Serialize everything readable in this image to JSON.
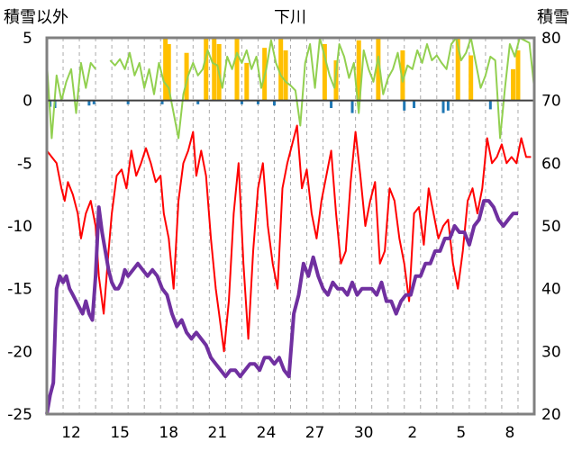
{
  "chart_data": {
    "type": "line",
    "title": "下川",
    "y_left_label": "積雪以外",
    "y_right_label": "積雪",
    "y_left_range": [
      -25,
      5
    ],
    "y_left_ticks": [
      "5",
      "0",
      "-5",
      "-10",
      "-15",
      "-20",
      "-25"
    ],
    "y_right_range": [
      20,
      80
    ],
    "y_right_ticks": [
      "80",
      "70",
      "60",
      "50",
      "40",
      "30",
      "20"
    ],
    "x_range": [
      0,
      30
    ],
    "x_ticks": [
      {
        "x": 1.5,
        "label": "12"
      },
      {
        "x": 4.5,
        "label": "15"
      },
      {
        "x": 7.5,
        "label": "18"
      },
      {
        "x": 10.5,
        "label": "21"
      },
      {
        "x": 13.5,
        "label": "24"
      },
      {
        "x": 16.5,
        "label": "27"
      },
      {
        "x": 19.5,
        "label": "30"
      },
      {
        "x": 22.5,
        "label": "2"
      },
      {
        "x": 25.5,
        "label": "5"
      },
      {
        "x": 28.5,
        "label": "8"
      }
    ],
    "grid": "vertical dashed every day",
    "colors": {
      "temperature": "#ff0000",
      "snow_depth": "#7030a0",
      "sunshine": "#92d050",
      "precipitation": "#ffc000",
      "small_bars": "#1f77b4"
    },
    "series": [
      {
        "key": "temperature",
        "axis": "left",
        "x": [
          0,
          0.3,
          0.6,
          0.9,
          1.1,
          1.3,
          1.6,
          1.9,
          2.1,
          2.4,
          2.7,
          3.0,
          3.2,
          3.5,
          3.8,
          4.0,
          4.3,
          4.6,
          4.9,
          5.2,
          5.5,
          5.8,
          6.1,
          6.4,
          6.7,
          7.0,
          7.2,
          7.5,
          7.8,
          8.1,
          8.4,
          8.7,
          9.0,
          9.2,
          9.5,
          9.8,
          10.1,
          10.4,
          10.6,
          10.9,
          11.2,
          11.5,
          11.8,
          12.1,
          12.4,
          12.7,
          13.0,
          13.3,
          13.6,
          13.9,
          14.2,
          14.5,
          14.8,
          15.1,
          15.4,
          15.7,
          16.0,
          16.3,
          16.6,
          16.9,
          17.2,
          17.5,
          17.8,
          18.1,
          18.4,
          18.7,
          19.0,
          19.3,
          19.6,
          19.9,
          20.2,
          20.5,
          20.8,
          21.1,
          21.4,
          21.7,
          22.0,
          22.3,
          22.6,
          22.9,
          23.2,
          23.5,
          23.8,
          24.1,
          24.4,
          24.7,
          25.0,
          25.3,
          25.6,
          25.9,
          26.2,
          26.5,
          26.8,
          27.1,
          27.4,
          27.7,
          28.0,
          28.3,
          28.6,
          28.9,
          29.2,
          29.5,
          29.8
        ],
        "y": [
          -4,
          -4.5,
          -5,
          -7,
          -8,
          -6.5,
          -7.5,
          -9,
          -11,
          -9,
          -8,
          -10,
          -14,
          -17,
          -12,
          -9,
          -6,
          -5.5,
          -7,
          -4,
          -6,
          -5,
          -3.8,
          -5,
          -6.5,
          -6,
          -9,
          -11,
          -15,
          -8,
          -5,
          -4,
          -2.5,
          -6,
          -4,
          -6,
          -11,
          -15,
          -17,
          -20,
          -16,
          -9,
          -5,
          -13,
          -19,
          -12,
          -7,
          -5,
          -10,
          -13,
          -15,
          -7,
          -5,
          -3.5,
          -2,
          -7,
          -5.5,
          -9,
          -11,
          -8,
          -6,
          -4,
          -9,
          -13,
          -12,
          -6.5,
          -2.5,
          -6,
          -10,
          -8,
          -6.5,
          -13,
          -12,
          -7,
          -8,
          -11,
          -13,
          -16,
          -9,
          -8.5,
          -11.5,
          -7,
          -9,
          -11,
          -10,
          -9.5,
          -13,
          -15,
          -12,
          -8,
          -7,
          -9,
          -7,
          -3,
          -5,
          -4.5,
          -3.5,
          -5,
          -4.5,
          -5,
          -3,
          -4.5,
          -4.5
        ]
      },
      {
        "key": "snow_depth",
        "axis": "right",
        "x": [
          0,
          0.2,
          0.4,
          0.6,
          0.8,
          1.0,
          1.2,
          1.4,
          1.6,
          1.8,
          2.0,
          2.2,
          2.4,
          2.6,
          2.8,
          3.0,
          3.2,
          3.4,
          3.6,
          3.8,
          4.0,
          4.2,
          4.4,
          4.6,
          4.8,
          5.0,
          5.3,
          5.6,
          5.9,
          6.2,
          6.5,
          6.8,
          7.1,
          7.4,
          7.7,
          8.0,
          8.3,
          8.6,
          8.9,
          9.2,
          9.5,
          9.8,
          10.1,
          10.4,
          10.7,
          11.0,
          11.3,
          11.6,
          11.9,
          12.2,
          12.5,
          12.8,
          13.1,
          13.4,
          13.7,
          14.0,
          14.3,
          14.6,
          14.9,
          15.2,
          15.5,
          15.8,
          16.1,
          16.4,
          16.7,
          17.0,
          17.3,
          17.6,
          17.9,
          18.2,
          18.5,
          18.8,
          19.1,
          19.4,
          19.7,
          20.0,
          20.3,
          20.6,
          20.9,
          21.2,
          21.5,
          21.8,
          22.1,
          22.4,
          22.7,
          23.0,
          23.3,
          23.6,
          23.9,
          24.2,
          24.5,
          24.8,
          25.1,
          25.4,
          25.7,
          26.0,
          26.3,
          26.6,
          26.9,
          27.2,
          27.5,
          27.8,
          28.1,
          28.4,
          28.7,
          29.0
        ],
        "y": [
          20,
          23,
          25,
          40,
          42,
          41,
          42,
          40,
          39,
          38,
          37,
          36,
          38,
          36,
          35,
          42,
          53,
          49,
          46,
          43,
          41,
          40,
          40,
          41,
          43,
          42,
          43,
          44,
          43,
          42,
          43,
          42,
          40,
          39,
          36,
          34,
          35,
          33,
          32,
          33,
          32,
          31,
          29,
          28,
          27,
          26,
          27,
          27,
          26,
          27,
          28,
          28,
          27,
          29,
          29,
          28,
          29,
          27,
          26,
          36,
          39,
          44,
          42,
          45,
          42,
          40,
          39,
          41,
          40,
          40,
          39,
          41,
          39,
          40,
          40,
          40,
          39,
          41,
          38,
          38,
          36,
          38,
          39,
          39,
          42,
          42,
          44,
          44,
          46,
          46,
          48,
          48,
          50,
          49,
          49,
          47,
          50,
          51,
          54,
          54,
          53,
          51,
          50,
          51,
          52,
          52
        ]
      },
      {
        "key": "sunshine",
        "axis": "left",
        "x": [
          0,
          0.3,
          0.6,
          0.9,
          1.2,
          1.5,
          1.8,
          2.1,
          2.4,
          2.7,
          3.0,
          3.3,
          3.6,
          3.9,
          4.2,
          4.5,
          4.8,
          5.1,
          5.4,
          5.7,
          6.0,
          6.3,
          6.6,
          6.9,
          7.2,
          7.5,
          7.8,
          8.1,
          8.4,
          8.7,
          9.0,
          9.3,
          9.6,
          9.9,
          10.2,
          10.5,
          10.8,
          11.1,
          11.4,
          11.7,
          12.0,
          12.3,
          12.6,
          12.9,
          13.2,
          13.5,
          13.8,
          14.1,
          14.4,
          14.7,
          15.0,
          15.3,
          15.6,
          15.9,
          16.2,
          16.5,
          16.8,
          17.1,
          17.4,
          17.7,
          18.0,
          18.3,
          18.6,
          18.9,
          19.2,
          19.5,
          19.8,
          20.1,
          20.4,
          20.7,
          21.0,
          21.3,
          21.6,
          21.9,
          22.2,
          22.5,
          22.8,
          23.1,
          23.4,
          23.7,
          24.0,
          24.3,
          24.6,
          24.9,
          25.2,
          25.5,
          25.8,
          26.1,
          26.4,
          26.7,
          27.0,
          27.3,
          27.6,
          27.9,
          28.2,
          28.5,
          28.8,
          29.1,
          29.4,
          29.7,
          30.0
        ],
        "y": [
          3,
          -3,
          2,
          0,
          1.5,
          2.5,
          -1,
          3,
          1,
          3,
          2.5,
          null,
          null,
          3.2,
          2.8,
          3.3,
          2.5,
          3.8,
          2,
          3,
          1,
          2.5,
          0.5,
          3,
          1.5,
          1,
          -1,
          -3,
          0.5,
          2,
          3,
          2,
          2.5,
          4,
          3,
          2.8,
          1,
          3.5,
          2.5,
          3.8,
          3,
          4,
          2.5,
          3.5,
          1,
          2.5,
          4.8,
          3,
          2,
          1.5,
          1.2,
          0.8,
          -2,
          3,
          4.5,
          1,
          5,
          3.5,
          2,
          1,
          4.5,
          3.5,
          1.8,
          3,
          -1,
          4,
          2.5,
          1.5,
          3.5,
          0.5,
          1.8,
          2.5,
          3.8,
          1.5,
          2.8,
          2.5,
          4,
          3,
          4.5,
          3.2,
          3.6,
          3,
          2.5,
          4.5,
          5,
          3.2,
          3.8,
          5,
          3,
          1,
          2,
          3.5,
          3.2,
          -3,
          1,
          4.5,
          3.5,
          5,
          4.8,
          4.6,
          1
        ]
      }
    ],
    "bar_series": [
      {
        "key": "precipitation",
        "axis": "left",
        "x": [
          7.3,
          7.5,
          8.6,
          9.8,
          10.3,
          10.6,
          11.7,
          12.3,
          13.4,
          14.4,
          14.7,
          17.1,
          17.8,
          19.2,
          20.4,
          21.9,
          25.3,
          26.1,
          28.7,
          29.0
        ],
        "y": [
          5,
          4.5,
          3.8,
          5,
          5,
          4.5,
          5,
          3,
          4.2,
          5,
          4,
          4.5,
          3.2,
          4.8,
          5,
          4,
          5,
          3.6,
          2.5,
          4
        ]
      },
      {
        "key": "small_bars",
        "axis": "left",
        "x": [
          0.2,
          0.5,
          2.6,
          2.9,
          5.0,
          7.1,
          9.3,
          12.0,
          13.0,
          14.0,
          17.5,
          18.8,
          22.0,
          22.6,
          24.4,
          24.7,
          27.3
        ],
        "y": [
          -0.5,
          -0.6,
          -0.4,
          -0.3,
          -0.3,
          -0.3,
          -0.3,
          -0.3,
          -0.3,
          -0.4,
          -0.6,
          -1,
          -0.8,
          -0.6,
          -1,
          -0.8,
          -0.7
        ]
      }
    ]
  }
}
